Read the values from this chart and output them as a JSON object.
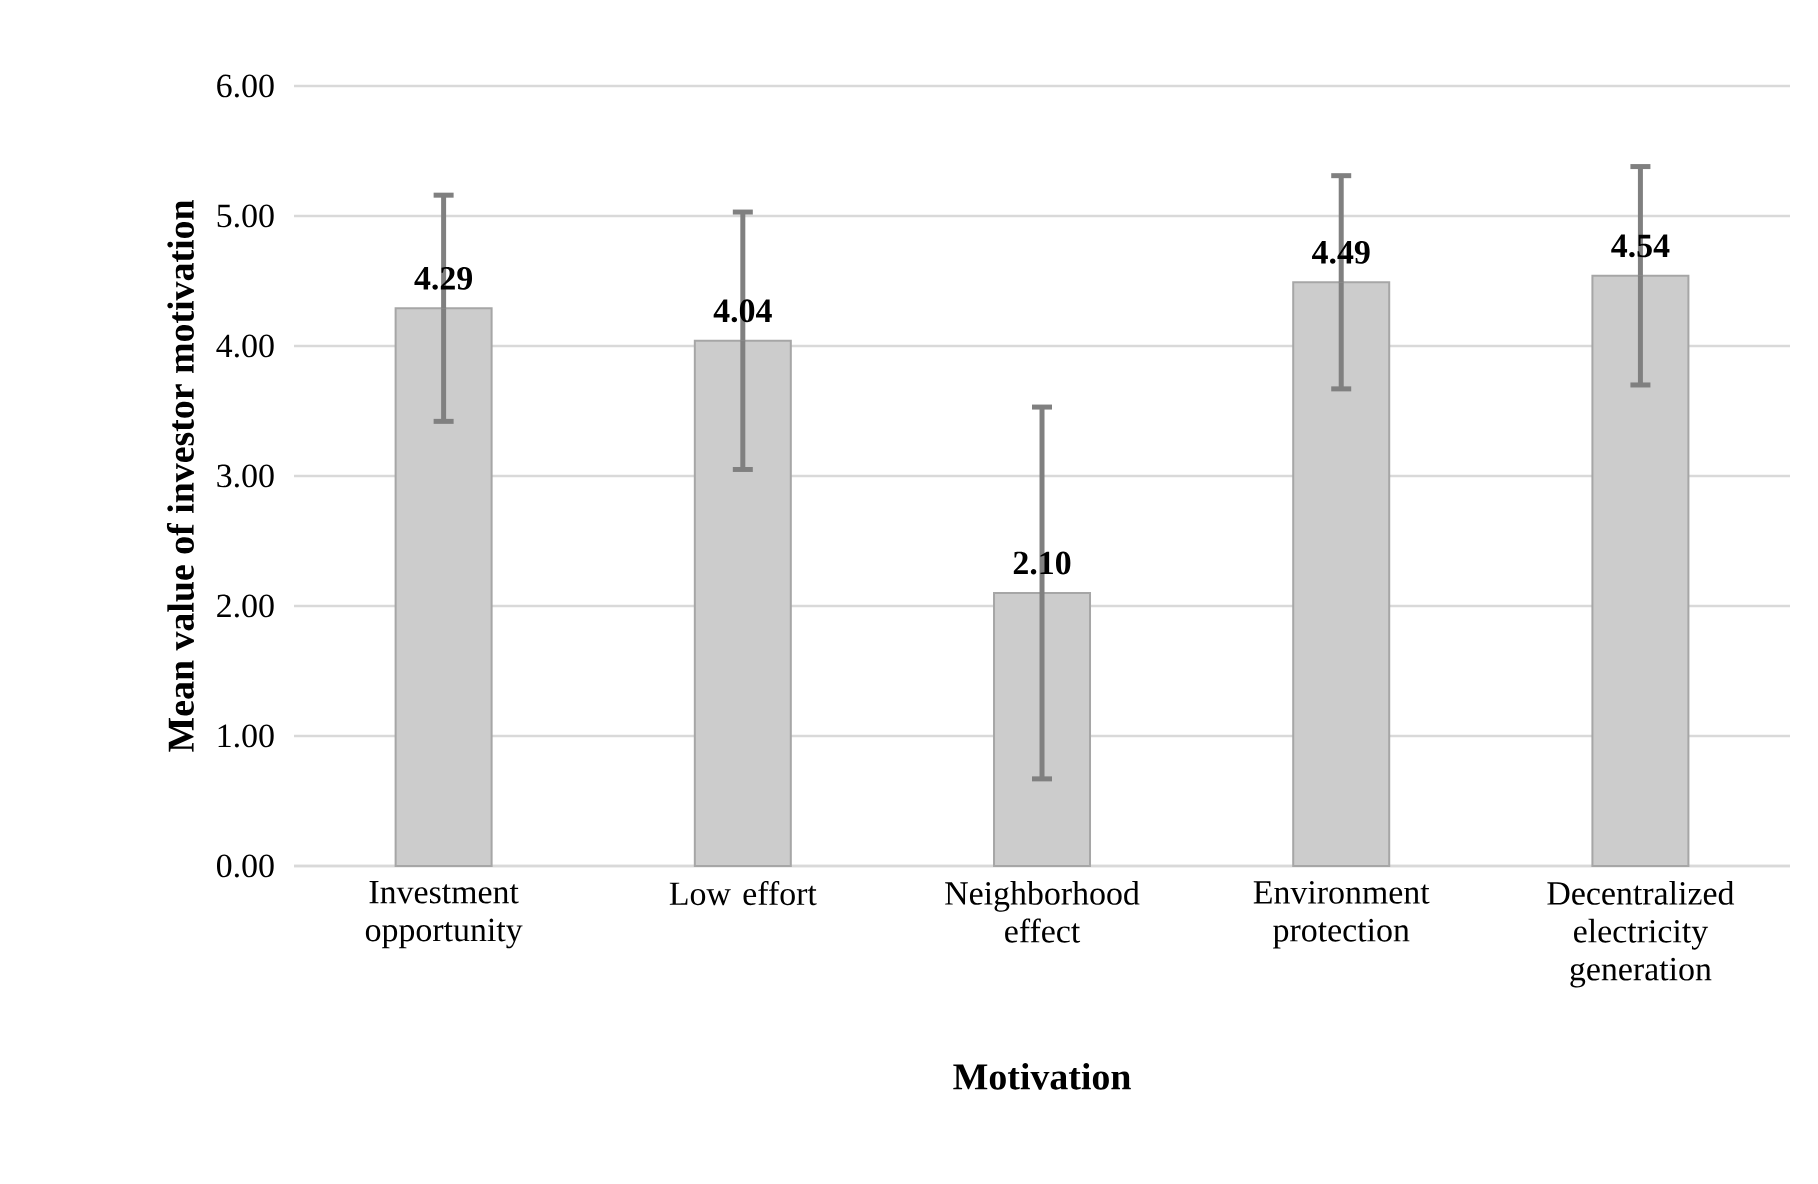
{
  "chart_data": {
    "type": "bar",
    "xlabel": "Motivation",
    "ylabel": "Mean value of investor motivation",
    "categories": [
      "Investment opportunity",
      "Low effort",
      "Neighborhood effect",
      "Environment protection",
      "Decentralized electricity generation"
    ],
    "values": [
      4.29,
      4.04,
      2.1,
      4.49,
      4.54
    ],
    "errors": [
      0.87,
      0.99,
      1.43,
      0.82,
      0.84
    ],
    "color": "#cccccc",
    "ylim": [
      0,
      6
    ],
    "yticks": [
      {
        "value": 0,
        "label": "0.00"
      },
      {
        "value": 1,
        "label": "1.00"
      },
      {
        "value": 2,
        "label": "2.00"
      },
      {
        "value": 3,
        "label": "3.00"
      },
      {
        "value": 4,
        "label": "4.00"
      },
      {
        "value": 5,
        "label": "5.00"
      },
      {
        "value": 6,
        "label": "6.00"
      }
    ],
    "value_labels": [
      "4.29",
      "4.04",
      "2.10",
      "4.49",
      "4.54"
    ],
    "grid": "y"
  }
}
